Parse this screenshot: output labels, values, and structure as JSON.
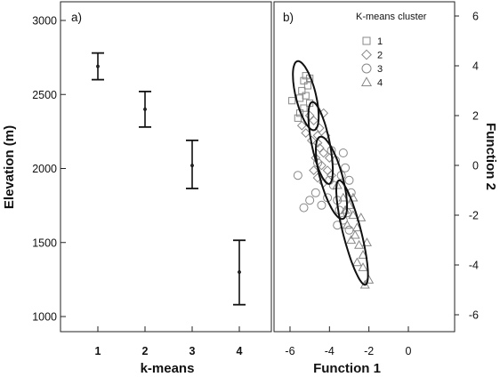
{
  "chart_data": [
    {
      "panel_label": "a)",
      "type": "scatter",
      "error_bars": true,
      "xlabel": "k-means",
      "ylabel": "Elevation (m)",
      "categories": [
        "1",
        "2",
        "3",
        "4"
      ],
      "y_ticks": [
        "1000",
        "1500",
        "2000",
        "2500",
        "3000"
      ],
      "ylim": [
        1000,
        3000
      ],
      "grid": false,
      "points": [
        {
          "x": 1,
          "y": 2690,
          "low": 2600,
          "high": 2780
        },
        {
          "x": 2,
          "y": 2400,
          "low": 2280,
          "high": 2520
        },
        {
          "x": 3,
          "y": 2020,
          "low": 1865,
          "high": 2190
        },
        {
          "x": 4,
          "y": 1300,
          "low": 1080,
          "high": 1515
        }
      ]
    },
    {
      "panel_label": "b)",
      "type": "scatter",
      "xlabel": "Function 1",
      "ylabel": "Function 2",
      "x_ticks": [
        "-6",
        "-4",
        "-2",
        "0"
      ],
      "y_ticks": [
        "6",
        "4",
        "2",
        "0",
        "-2",
        "-4",
        "-6"
      ],
      "xlim": [
        -7,
        0
      ],
      "ylim": [
        -6.4,
        6.6
      ],
      "grid": false,
      "legend": {
        "title": "K-means cluster",
        "position": "top-right"
      },
      "series": [
        {
          "name": "1",
          "marker": "square",
          "points": [
            [
              -5.9,
              2.6
            ],
            [
              -5.5,
              2.7
            ],
            [
              -5.3,
              2.3
            ],
            [
              -5.5,
              2.1
            ],
            [
              -5.2,
              2.8
            ],
            [
              -5.4,
              3.0
            ],
            [
              -5.1,
              3.2
            ],
            [
              -5.3,
              3.4
            ],
            [
              -5.2,
              3.6
            ],
            [
              -5.0,
              3.5
            ],
            [
              -5.6,
              1.9
            ],
            [
              -5.0,
              2.5
            ]
          ]
        },
        {
          "name": "2",
          "marker": "diamond",
          "points": [
            [
              -5.0,
              2.0
            ],
            [
              -4.8,
              1.8
            ],
            [
              -4.5,
              1.5
            ],
            [
              -4.3,
              2.1
            ],
            [
              -4.6,
              1.2
            ],
            [
              -4.9,
              1.0
            ],
            [
              -4.5,
              0.7
            ],
            [
              -4.3,
              0.5
            ],
            [
              -4.7,
              0.3
            ],
            [
              -4.4,
              0.0
            ],
            [
              -4.1,
              -0.2
            ],
            [
              -4.6,
              -0.5
            ],
            [
              -4.3,
              -0.7
            ],
            [
              -5.2,
              1.3
            ],
            [
              -4.0,
              0.3
            ],
            [
              -4.8,
              -0.2
            ],
            [
              -4.2,
              1.2
            ],
            [
              -5.4,
              1.6
            ],
            [
              -4.6,
              0.9
            ],
            [
              -3.9,
              -0.4
            ]
          ]
        },
        {
          "name": "3",
          "marker": "circle",
          "points": [
            [
              -5.3,
              -1.7
            ],
            [
              -5.0,
              -1.4
            ],
            [
              -4.7,
              -1.1
            ],
            [
              -4.4,
              -1.6
            ],
            [
              -4.1,
              -1.3
            ],
            [
              -3.8,
              -0.8
            ],
            [
              -3.6,
              -1.4
            ],
            [
              -3.4,
              -0.4
            ],
            [
              -3.2,
              -0.1
            ],
            [
              -3.0,
              -0.6
            ],
            [
              -3.3,
              -2.2
            ],
            [
              -3.6,
              -2.4
            ],
            [
              -3.1,
              -1.9
            ],
            [
              -4.0,
              -0.6
            ],
            [
              -3.7,
              0.2
            ],
            [
              -3.3,
              0.5
            ],
            [
              -4.6,
              0.1
            ],
            [
              -3.0,
              -2.6
            ],
            [
              -2.9,
              -1.1
            ],
            [
              -3.9,
              0.6
            ],
            [
              -5.6,
              -0.4
            ],
            [
              -3.5,
              -1.8
            ]
          ]
        },
        {
          "name": "4",
          "marker": "triangle",
          "points": [
            [
              -3.6,
              -0.8
            ],
            [
              -3.3,
              -1.3
            ],
            [
              -3.0,
              -1.6
            ],
            [
              -2.8,
              -2.0
            ],
            [
              -3.1,
              -2.4
            ],
            [
              -2.6,
              -2.5
            ],
            [
              -2.9,
              -3.0
            ],
            [
              -2.5,
              -3.2
            ],
            [
              -2.3,
              -3.6
            ],
            [
              -2.6,
              -3.9
            ],
            [
              -2.3,
              -4.1
            ],
            [
              -2.2,
              -4.8
            ],
            [
              -2.0,
              -4.6
            ],
            [
              -2.7,
              -2.8
            ],
            [
              -3.2,
              -1.8
            ],
            [
              -2.4,
              -2.1
            ],
            [
              -2.1,
              -3.1
            ],
            [
              -2.8,
              -1.3
            ]
          ]
        }
      ],
      "ellipses": [
        {
          "cluster": "1",
          "cx": -5.2,
          "cy": 2.8,
          "semi_major": 1.45,
          "semi_minor": 0.5,
          "angle_deg": -72
        },
        {
          "cluster": "2",
          "cx": -4.45,
          "cy": 0.9,
          "semi_major": 1.7,
          "semi_minor": 0.45,
          "angle_deg": -75
        },
        {
          "cluster": "3",
          "cx": -3.9,
          "cy": -0.5,
          "semi_major": 1.75,
          "semi_minor": 0.55,
          "angle_deg": -70
        },
        {
          "cluster": "4",
          "cx": -2.85,
          "cy": -2.7,
          "semi_major": 2.2,
          "semi_minor": 0.45,
          "angle_deg": -72
        }
      ]
    }
  ]
}
